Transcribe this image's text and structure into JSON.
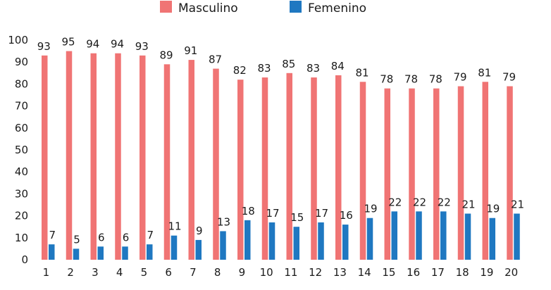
{
  "chart_data": {
    "type": "bar",
    "categories": [
      "1",
      "2",
      "3",
      "4",
      "5",
      "6",
      "7",
      "8",
      "9",
      "10",
      "11",
      "12",
      "13",
      "14",
      "15",
      "16",
      "17",
      "18",
      "19",
      "20"
    ],
    "series": [
      {
        "name": "Masculino",
        "color": "#f07474",
        "values": [
          93,
          95,
          94,
          94,
          93,
          89,
          91,
          87,
          82,
          83,
          85,
          83,
          84,
          81,
          78,
          78,
          78,
          79,
          81,
          79
        ]
      },
      {
        "name": "Femenino",
        "color": "#1f78c1",
        "values": [
          7,
          5,
          6,
          6,
          7,
          11,
          9,
          13,
          18,
          17,
          15,
          17,
          16,
          19,
          22,
          22,
          22,
          21,
          19,
          21
        ]
      }
    ],
    "ylim": [
      0,
      100
    ],
    "yticks": [
      0,
      10,
      20,
      30,
      40,
      50,
      60,
      70,
      80,
      90,
      100
    ],
    "legend_position": "top-center",
    "grid": false
  }
}
